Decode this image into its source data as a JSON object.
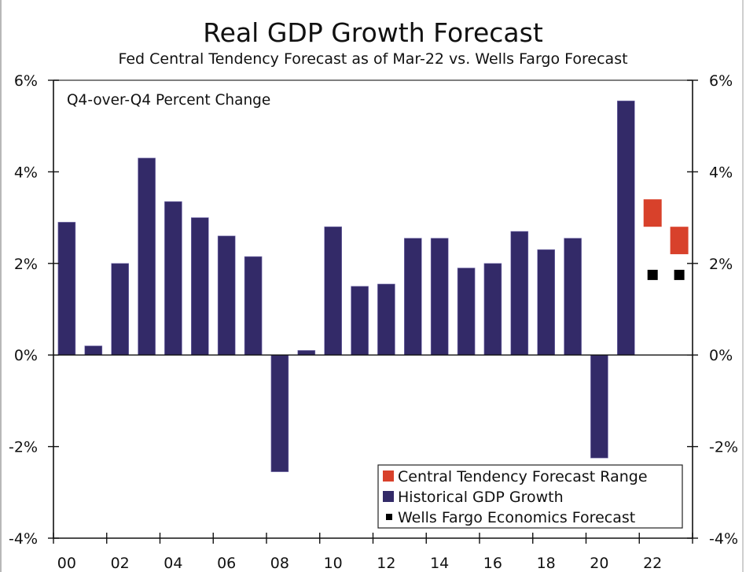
{
  "chart_data": {
    "type": "bar",
    "title": "Real GDP Growth Forecast",
    "subtitle": "Fed Central Tendency Forecast as of Mar-22 vs. Wells Fargo Forecast",
    "annotation": "Q4-over-Q4 Percent Change",
    "xlabel": "",
    "ylabel": "",
    "ylim": [
      -4,
      6
    ],
    "yticks": [
      -4,
      -2,
      0,
      2,
      4,
      6
    ],
    "ytick_labels": [
      "-4%",
      "-2%",
      "0%",
      "2%",
      "4%",
      "6%"
    ],
    "x_years": [
      2000,
      2023
    ],
    "xtick_labels": [
      "00",
      "02",
      "04",
      "06",
      "08",
      "10",
      "12",
      "14",
      "16",
      "18",
      "20",
      "22"
    ],
    "grid": false,
    "legend_position": "bottom-right",
    "series": [
      {
        "name": "Historical GDP Growth",
        "type": "bar",
        "color": "#332a68",
        "categories": [
          2000,
          2001,
          2002,
          2003,
          2004,
          2005,
          2006,
          2007,
          2008,
          2009,
          2010,
          2011,
          2012,
          2013,
          2014,
          2015,
          2016,
          2017,
          2018,
          2019,
          2020,
          2021
        ],
        "values": [
          2.9,
          0.2,
          2.0,
          4.3,
          3.35,
          3.0,
          2.6,
          2.15,
          -2.55,
          0.1,
          2.8,
          1.5,
          1.55,
          2.55,
          2.55,
          1.9,
          2.0,
          2.7,
          2.3,
          2.55,
          -2.25,
          5.55
        ]
      },
      {
        "name": "Central Tendency Forecast Range",
        "type": "range",
        "color": "#d8412b",
        "categories": [
          2022,
          2023
        ],
        "low": [
          2.8,
          2.2
        ],
        "high": [
          3.4,
          2.8
        ]
      },
      {
        "name": "Wells Fargo Economics Forecast",
        "type": "marker",
        "color": "#000000",
        "categories": [
          2022,
          2023
        ],
        "values": [
          1.75,
          1.75
        ]
      }
    ],
    "legend": [
      {
        "label": "Central Tendency Forecast Range",
        "color": "#d8412b",
        "marker": "square"
      },
      {
        "label": "Historical GDP Growth",
        "color": "#332a68",
        "marker": "square"
      },
      {
        "label": "Wells Fargo Economics Forecast",
        "color": "#000000",
        "marker": "small-square"
      }
    ]
  }
}
